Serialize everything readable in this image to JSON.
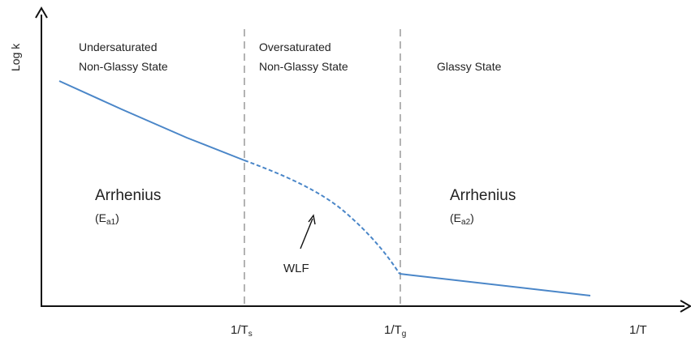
{
  "chart_data": {
    "type": "line",
    "y_axis_label": "Log k",
    "x_axis_label": "1/T",
    "x_ticks": [
      {
        "base": "1/T",
        "sub": "s"
      },
      {
        "base": "1/T",
        "sub": "g"
      }
    ],
    "regions": [
      {
        "line1": "Undersaturated",
        "line2": "Non-Glassy State"
      },
      {
        "line1": "Oversaturated",
        "line2": "Non-Glassy State"
      },
      {
        "line1": "Glassy State",
        "line2": ""
      }
    ],
    "segments": [
      {
        "model": "Arrhenius",
        "param_base": "E",
        "param_sub": "a1",
        "style": "solid"
      },
      {
        "model": "WLF",
        "style": "dashed"
      },
      {
        "model": "Arrhenius",
        "param_base": "E",
        "param_sub": "a2",
        "style": "solid"
      }
    ],
    "line_color": "#4a86c8",
    "divider_color": "#999999"
  }
}
